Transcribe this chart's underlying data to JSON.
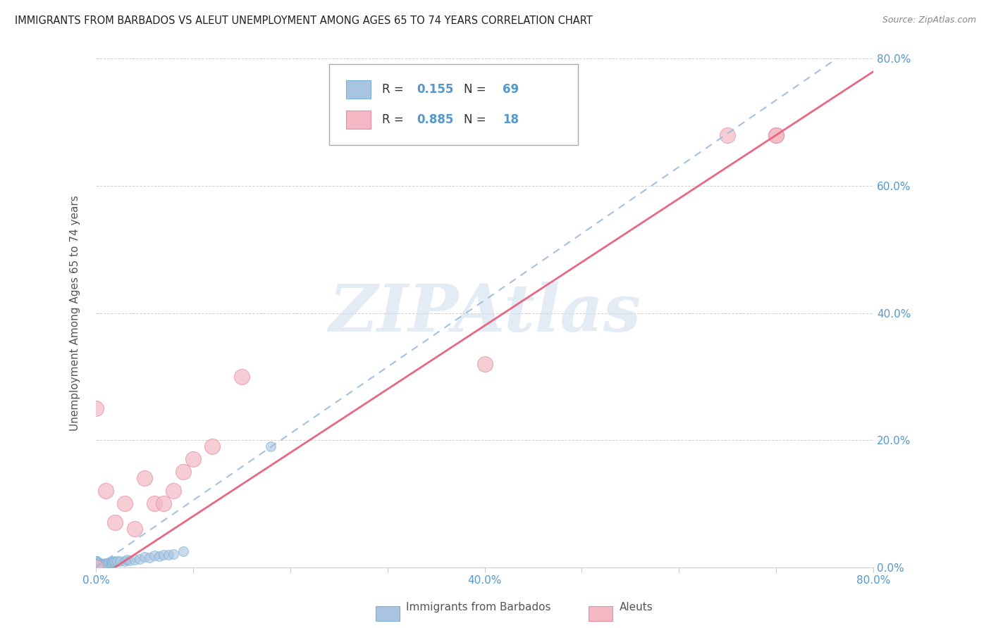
{
  "title": "IMMIGRANTS FROM BARBADOS VS ALEUT UNEMPLOYMENT AMONG AGES 65 TO 74 YEARS CORRELATION CHART",
  "source": "Source: ZipAtlas.com",
  "ylabel": "Unemployment Among Ages 65 to 74 years",
  "xlim": [
    0,
    0.8
  ],
  "ylim": [
    0,
    0.8
  ],
  "blue_R": 0.155,
  "blue_N": 69,
  "pink_R": 0.885,
  "pink_N": 18,
  "blue_color": "#A8C4E0",
  "blue_edge_color": "#7BAFD4",
  "pink_color": "#F4B8C4",
  "pink_edge_color": "#E88CA0",
  "blue_line_color": "#99BBDD",
  "pink_line_color": "#E8607A",
  "background_color": "#FFFFFF",
  "grid_color": "#CCCCCC",
  "watermark": "ZIPAtlas",
  "label_color": "#5599CC",
  "blue_scatter_x": [
    0.0,
    0.0,
    0.0,
    0.0,
    0.0,
    0.0,
    0.0,
    0.0,
    0.0,
    0.0,
    0.0,
    0.0,
    0.0,
    0.0,
    0.0,
    0.0,
    0.0,
    0.0,
    0.0,
    0.0,
    0.0,
    0.0,
    0.0,
    0.0,
    0.0,
    0.0,
    0.0,
    0.0,
    0.0,
    0.0,
    0.001,
    0.001,
    0.002,
    0.002,
    0.003,
    0.003,
    0.004,
    0.004,
    0.005,
    0.005,
    0.006,
    0.007,
    0.008,
    0.009,
    0.01,
    0.01,
    0.012,
    0.013,
    0.015,
    0.016,
    0.017,
    0.018,
    0.02,
    0.022,
    0.025,
    0.03,
    0.032,
    0.035,
    0.04,
    0.045,
    0.05,
    0.055,
    0.06,
    0.065,
    0.07,
    0.075,
    0.08,
    0.09,
    0.18
  ],
  "blue_scatter_y": [
    0.0,
    0.0,
    0.0,
    0.0,
    0.0,
    0.0,
    0.0,
    0.0,
    0.0,
    0.0,
    0.001,
    0.001,
    0.002,
    0.002,
    0.003,
    0.003,
    0.004,
    0.005,
    0.006,
    0.007,
    0.008,
    0.009,
    0.01,
    0.01,
    0.01,
    0.01,
    0.01,
    0.01,
    0.01,
    0.01,
    0.0,
    0.002,
    0.001,
    0.004,
    0.002,
    0.006,
    0.003,
    0.007,
    0.002,
    0.005,
    0.003,
    0.004,
    0.005,
    0.003,
    0.004,
    0.006,
    0.005,
    0.007,
    0.006,
    0.008,
    0.007,
    0.009,
    0.008,
    0.01,
    0.009,
    0.01,
    0.012,
    0.011,
    0.012,
    0.013,
    0.016,
    0.015,
    0.018,
    0.017,
    0.02,
    0.019,
    0.021,
    0.025,
    0.19
  ],
  "pink_scatter_x": [
    0.0,
    0.0,
    0.01,
    0.02,
    0.03,
    0.04,
    0.05,
    0.06,
    0.07,
    0.08,
    0.09,
    0.1,
    0.12,
    0.15,
    0.4,
    0.65,
    0.7,
    0.7
  ],
  "pink_scatter_y": [
    0.25,
    0.0,
    0.12,
    0.07,
    0.1,
    0.06,
    0.14,
    0.1,
    0.1,
    0.12,
    0.15,
    0.17,
    0.19,
    0.3,
    0.32,
    0.68,
    0.68,
    0.68
  ]
}
